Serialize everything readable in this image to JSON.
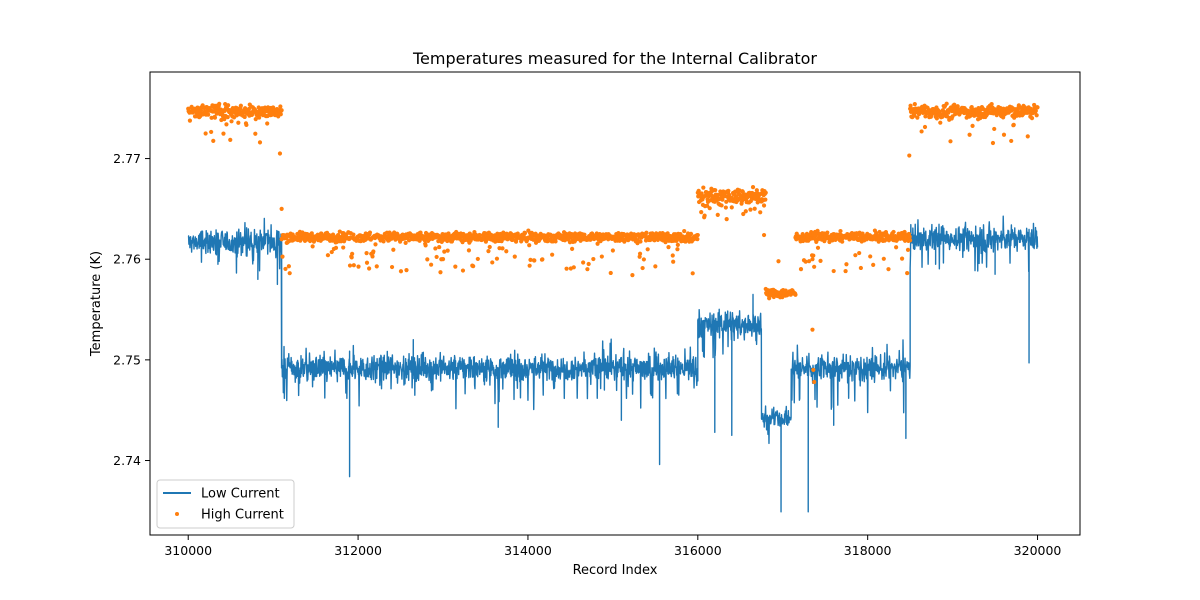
{
  "chart_data": {
    "type": "line+scatter",
    "title": "Temperatures measured for the Internal Calibrator",
    "xlabel": "Record Index",
    "ylabel": "Temperature (K)",
    "xlim": [
      309550,
      320500
    ],
    "ylim": [
      2.7326,
      2.7786
    ],
    "xticks": [
      310000,
      312000,
      314000,
      316000,
      318000,
      320000
    ],
    "xtick_labels": [
      "310000",
      "312000",
      "314000",
      "316000",
      "318000",
      "320000"
    ],
    "yticks": [
      2.74,
      2.75,
      2.76,
      2.77
    ],
    "ytick_labels": [
      "2.74",
      "2.75",
      "2.76",
      "2.77"
    ],
    "grid": false,
    "legend_position": "lower-left",
    "series": [
      {
        "name": "Low Current",
        "style": "line",
        "color": "#1f77b4",
        "segments": [
          {
            "x_start": 310000,
            "x_end": 311100,
            "base": 2.7617,
            "noise": 0.0011,
            "spikes": [
              [
                310350,
                2.7595
              ],
              [
                310820,
                2.758
              ],
              [
                311050,
                2.7575
              ]
            ]
          },
          {
            "x_start": 311100,
            "x_end": 316000,
            "base": 2.7492,
            "noise": 0.0012,
            "spikes": [
              [
                311100,
                2.7618
              ],
              [
                311900,
                2.7384
              ],
              [
                312650,
                2.752
              ],
              [
                313650,
                2.7433
              ],
              [
                314900,
                2.747
              ],
              [
                315100,
                2.744
              ],
              [
                315550,
                2.7396
              ]
            ]
          },
          {
            "x_start": 316000,
            "x_end": 316750,
            "base": 2.7535,
            "noise": 0.0012,
            "spikes": [
              [
                316200,
                2.7428
              ],
              [
                316400,
                2.7425
              ],
              [
                316650,
                2.7565
              ]
            ]
          },
          {
            "x_start": 316750,
            "x_end": 317100,
            "base": 2.7442,
            "noise": 0.0008,
            "spikes": [
              [
                316980,
                2.7349
              ]
            ]
          },
          {
            "x_start": 317100,
            "x_end": 318500,
            "base": 2.7492,
            "noise": 0.0012,
            "spikes": [
              [
                317300,
                2.7349
              ],
              [
                317600,
                2.7435
              ],
              [
                318450,
                2.7422
              ]
            ]
          },
          {
            "x_start": 318500,
            "x_end": 320000,
            "base": 2.7621,
            "noise": 0.0011,
            "spikes": [
              [
                318800,
                2.7595
              ],
              [
                319500,
                2.7585
              ],
              [
                319900,
                2.7497
              ]
            ]
          }
        ]
      },
      {
        "name": "High Current",
        "style": "scatter",
        "color": "#ff7f0e",
        "segments": [
          {
            "x_start": 310000,
            "x_end": 311100,
            "base": 2.7747,
            "noise": 0.0007,
            "low_tail": 0.003
          },
          {
            "x_start": 311100,
            "x_end": 316000,
            "base": 2.7622,
            "noise": 0.0005,
            "low_tail": 0.0035
          },
          {
            "x_start": 316000,
            "x_end": 316800,
            "base": 2.7663,
            "noise": 0.0009,
            "low_tail": 0.002
          },
          {
            "x_start": 316800,
            "x_end": 317150,
            "base": 2.7566,
            "noise": 0.0005,
            "low_tail": 0.0
          },
          {
            "x_start": 317150,
            "x_end": 318500,
            "base": 2.7622,
            "noise": 0.0005,
            "low_tail": 0.0035
          },
          {
            "x_start": 318500,
            "x_end": 320000,
            "base": 2.7747,
            "noise": 0.0007,
            "low_tail": 0.003
          }
        ],
        "outliers": [
          [
            311080,
            2.7705
          ],
          [
            311100,
            2.765
          ],
          [
            316780,
            2.7624
          ],
          [
            316950,
            2.7598
          ],
          [
            317350,
            2.76
          ],
          [
            317350,
            2.753
          ],
          [
            317360,
            2.749
          ],
          [
            317370,
            2.7478
          ],
          [
            318490,
            2.7703
          ]
        ]
      }
    ]
  }
}
